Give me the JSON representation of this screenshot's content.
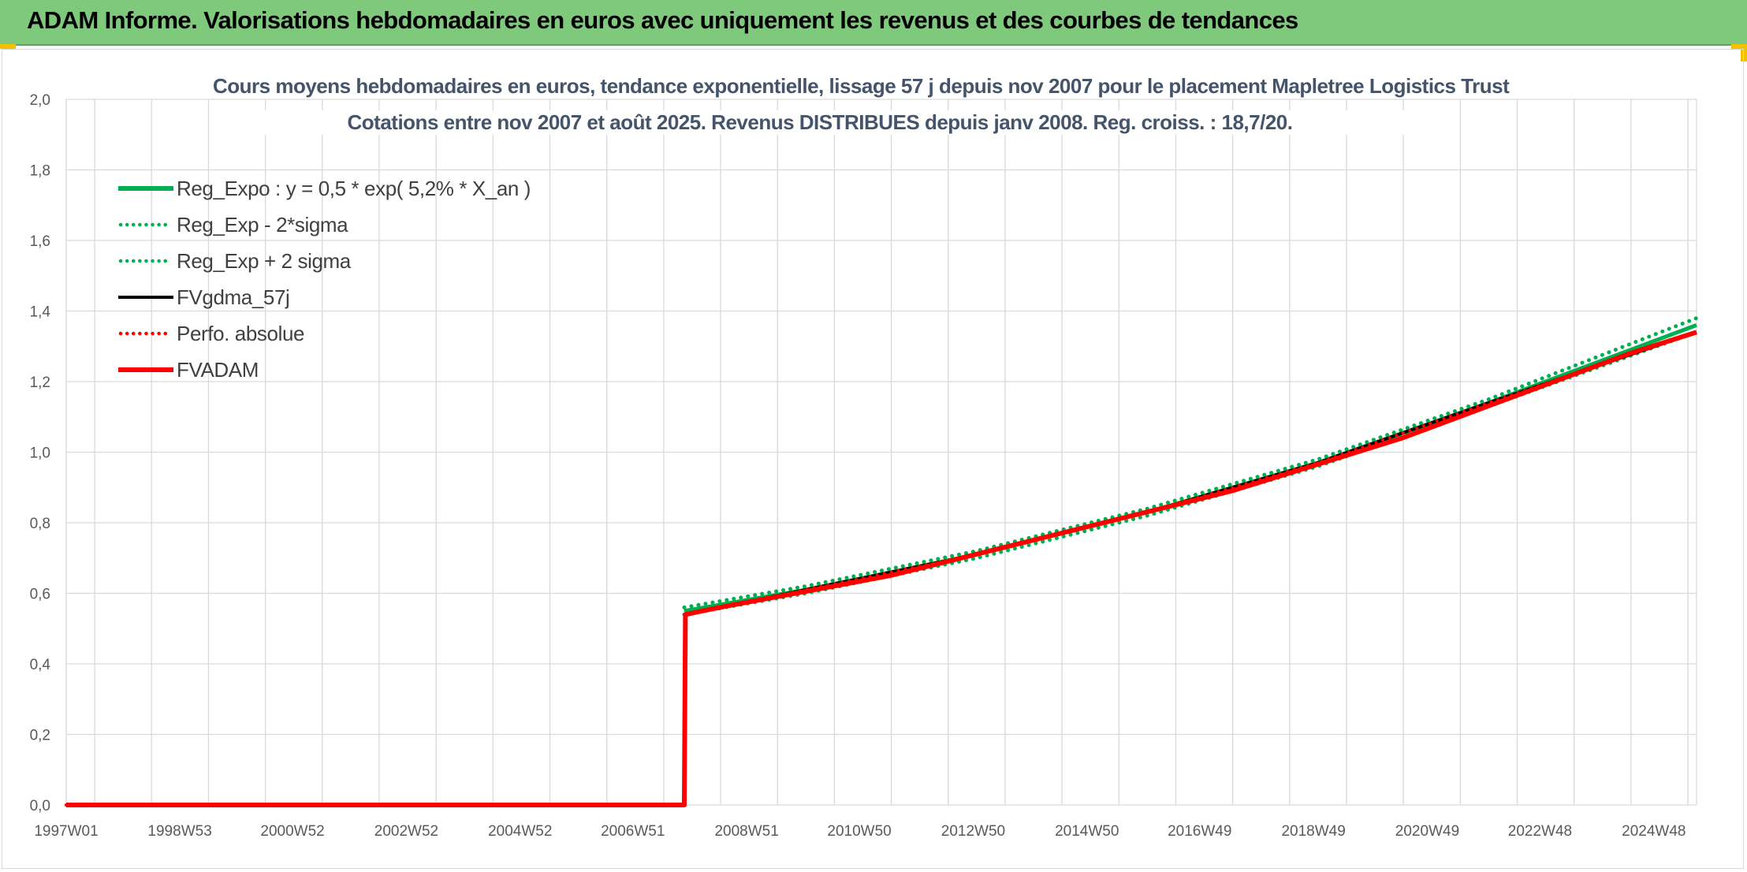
{
  "banner": {
    "title": "ADAM Informe. Valorisations hebdomadaires en euros avec uniquement les revenus et des courbes de tendances"
  },
  "colors": {
    "banner_bg": "#7fc97c",
    "reg_expo": "#00b050",
    "fvgdma": "#000000",
    "fvadam": "#ff0000",
    "grid": "#d9d9d9"
  },
  "chart_data": {
    "type": "line",
    "title_line1": "Cours moyens hebdomadaires en euros, tendance exponentielle, lissage 57 j depuis nov 2007 pour le placement Mapletree Logistics Trust",
    "title_line2": "Cotations entre nov 2007 et août 2025. Revenus DISTRIBUES depuis janv 2008. Reg. croiss. : 18,7/20.",
    "x_tick_labels": [
      "1997W01",
      "1998W53",
      "2000W52",
      "2002W52",
      "2004W52",
      "2006W51",
      "2008W51",
      "2010W50",
      "2012W50",
      "2014W50",
      "2016W49",
      "2018W49",
      "2020W49",
      "2022W48",
      "2024W48"
    ],
    "x_range": [
      "1997W01",
      "2025W35"
    ],
    "y_tick_labels": [
      "0,0",
      "0,2",
      "0,4",
      "0,6",
      "0,8",
      "1,0",
      "1,2",
      "1,4",
      "1,6",
      "1,8",
      "2,0"
    ],
    "ylim": [
      0,
      2
    ],
    "grid": true,
    "legend_position": "top-left",
    "series": [
      {
        "name": "Reg_Expo : y = 0,5 * exp( 5,2% *  X_an )",
        "style": "solid",
        "color": "#00b050",
        "x": [
          "2007W46",
          "2010W01",
          "2013W01",
          "2016W01",
          "2019W01",
          "2022W01",
          "2025W35"
        ],
        "values": [
          0.55,
          0.61,
          0.71,
          0.83,
          0.97,
          1.14,
          1.36
        ]
      },
      {
        "name": "Reg_Exp - 2*sigma",
        "style": "dotted",
        "color": "#00b050",
        "x": [
          "2007W46",
          "2010W01",
          "2013W01",
          "2016W01",
          "2019W01",
          "2022W01",
          "2025W35"
        ],
        "values": [
          0.54,
          0.6,
          0.7,
          0.82,
          0.96,
          1.13,
          1.34
        ]
      },
      {
        "name": "Reg_Exp + 2 sigma",
        "style": "dotted",
        "color": "#00b050",
        "x": [
          "2007W46",
          "2010W01",
          "2013W01",
          "2016W01",
          "2019W01",
          "2022W01",
          "2025W35"
        ],
        "values": [
          0.56,
          0.62,
          0.72,
          0.84,
          0.98,
          1.15,
          1.38
        ]
      },
      {
        "name": "FVgdma_57j",
        "style": "solid",
        "color": "#000000",
        "x": [
          "1997W01",
          "2007W46",
          "2007W47",
          "2010W01",
          "2013W01",
          "2016W01",
          "2019W01",
          "2022W01",
          "2025W35"
        ],
        "values": [
          0,
          0,
          0.54,
          0.61,
          0.71,
          0.83,
          0.97,
          1.14,
          1.34
        ]
      },
      {
        "name": "Perfo. absolue",
        "style": "dotted",
        "color": "#ff0000",
        "x": [
          "1997W01",
          "2007W46",
          "2007W47",
          "2010W01",
          "2013W01",
          "2016W01",
          "2019W01",
          "2022W01",
          "2025W35"
        ],
        "values": [
          0,
          0,
          0.54,
          0.61,
          0.71,
          0.83,
          0.97,
          1.14,
          1.34
        ]
      },
      {
        "name": "FVADAM",
        "style": "solid",
        "color": "#ff0000",
        "x": [
          "1997W01",
          "2007W46",
          "2007W47",
          "2008W26",
          "2009W26",
          "2010W26",
          "2011W26",
          "2012W26",
          "2013W26",
          "2014W26",
          "2015W26",
          "2016W26",
          "2017W26",
          "2018W26",
          "2019W26",
          "2020W26",
          "2021W26",
          "2022W26",
          "2023W26",
          "2024W26",
          "2025W35"
        ],
        "values": [
          0,
          0,
          0.54,
          0.56,
          0.59,
          0.62,
          0.65,
          0.69,
          0.73,
          0.77,
          0.81,
          0.85,
          0.89,
          0.94,
          0.99,
          1.04,
          1.1,
          1.16,
          1.22,
          1.28,
          1.34
        ]
      }
    ]
  }
}
